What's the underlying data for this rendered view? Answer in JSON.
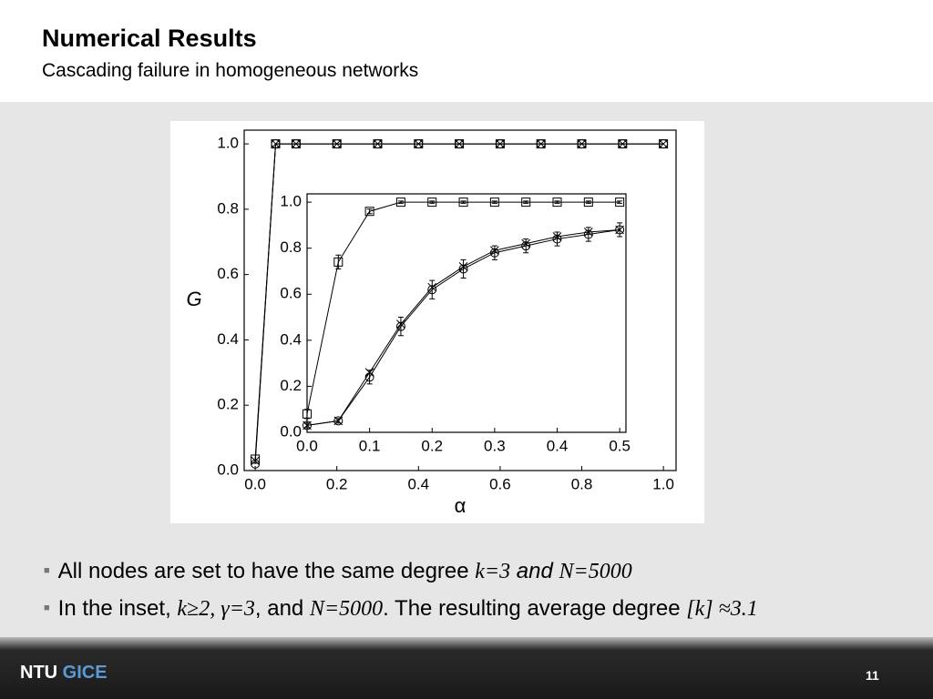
{
  "header": {
    "title": "Numerical Results",
    "subtitle": "Cascading failure in homogeneous networks"
  },
  "chart_data": [
    {
      "type": "scatter",
      "xlabel": "α",
      "ylabel": "G",
      "xlim": [
        -0.027,
        1.031
      ],
      "ylim": [
        0,
        1.042
      ],
      "xticks": [
        {
          "value": 0,
          "label": "0.0"
        },
        0.2,
        0.4,
        0.6,
        0.8,
        {
          "value": 1,
          "label": "1.0"
        }
      ],
      "yticks": [
        {
          "value": 0,
          "label": "0.0"
        },
        0.2,
        0.4,
        0.6,
        0.8,
        {
          "value": 1,
          "label": "1.0"
        }
      ],
      "x": [
        0,
        0.05,
        0.1,
        0.2,
        0.3,
        0.4,
        0.5,
        0.6,
        0.7,
        0.8,
        0.9,
        1.0
      ],
      "series": [
        {
          "marker": "square",
          "color": "#000000",
          "values": [
            0.035,
            1,
            1,
            1,
            1,
            1,
            1,
            1,
            1,
            1,
            1,
            1
          ]
        },
        {
          "marker": "circle",
          "color": "#000000",
          "values": [
            0.02,
            1,
            1,
            1,
            1,
            1,
            1,
            1,
            1,
            1,
            1,
            1
          ]
        },
        {
          "marker": "x",
          "color": "#000000",
          "values": [
            0.03,
            1,
            1,
            1,
            1,
            1,
            1,
            1,
            1,
            1,
            1,
            1
          ]
        }
      ]
    },
    {
      "type": "scatter",
      "xlim": [
        0,
        0.51
      ],
      "ylim": [
        0,
        1.036
      ],
      "xticks": [
        {
          "value": 0,
          "label": "0.0"
        },
        0.1,
        0.2,
        0.3,
        0.4,
        0.5
      ],
      "yticks": [
        {
          "value": 0,
          "label": "0.0"
        },
        0.2,
        0.4,
        0.6,
        0.8,
        {
          "value": 1,
          "label": "1.0"
        }
      ],
      "x": [
        0,
        0.05,
        0.1,
        0.15,
        0.2,
        0.25,
        0.3,
        0.35,
        0.4,
        0.45,
        0.5
      ],
      "series": [
        {
          "marker": "square",
          "color": "#000000",
          "values": [
            0.08,
            0.74,
            0.96,
            1,
            1,
            1,
            1,
            1,
            1,
            1,
            1
          ],
          "errors": [
            0.02,
            0.03,
            0.01,
            0.005,
            0.005,
            0.005,
            0.005,
            0.005,
            0.005,
            0.005,
            0.005
          ]
        },
        {
          "marker": "circle",
          "color": "#000000",
          "values": [
            0.03,
            0.05,
            0.24,
            0.46,
            0.62,
            0.71,
            0.78,
            0.81,
            0.84,
            0.86,
            0.88
          ],
          "errors": [
            0.01,
            0.01,
            0.03,
            0.04,
            0.04,
            0.04,
            0.03,
            0.03,
            0.03,
            0.03,
            0.03
          ]
        },
        {
          "marker": "x",
          "color": "#000000",
          "values": [
            0.03,
            0.05,
            0.26,
            0.47,
            0.63,
            0.72,
            0.79,
            0.82,
            0.85,
            0.87,
            0.88
          ]
        }
      ]
    }
  ],
  "bullets": [
    [
      "All nodes are set to have the same degree ",
      "k=3",
      " and ",
      "N=5000"
    ],
    [
      "In the inset, ",
      "k≥2, γ=3",
      ", and ",
      "N=5000",
      ". The resulting average degree ",
      "[k] ≈3.1"
    ]
  ],
  "footer": {
    "logo_a": "NTU",
    "logo_b": "GICE",
    "page": "11"
  }
}
